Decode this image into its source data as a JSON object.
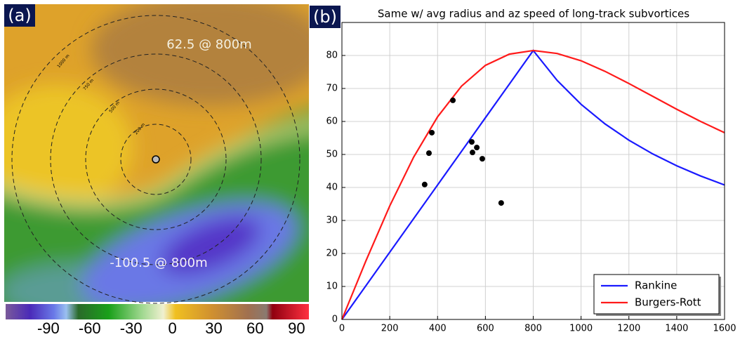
{
  "panel_a": {
    "label": "(a)",
    "annotation_max": "62.5 @ 800m",
    "annotation_min": "-100.5 @ 800m",
    "ring_labels": [
      "200 m",
      "500 m",
      "750 m",
      "1000 m"
    ],
    "colorbar": {
      "clim": [
        -121,
        99
      ],
      "ticks": [
        -90,
        -60,
        -30,
        0,
        30,
        60,
        90
      ]
    }
  },
  "chart_data": {
    "type": "line",
    "label": "(b)",
    "title": "Same w/ avg radius and az speed of long-track subvortices",
    "x": [
      0,
      100,
      200,
      300,
      400,
      500,
      600,
      700,
      800,
      900,
      1000,
      1100,
      1200,
      1300,
      1400,
      1500,
      1600
    ],
    "series": [
      {
        "name": "Rankine",
        "color": "#1a1aff",
        "values": [
          0,
          10.19,
          20.38,
          30.56,
          40.75,
          50.94,
          61.13,
          71.31,
          81.5,
          72.44,
          65.2,
          59.27,
          54.33,
          50.15,
          46.57,
          43.47,
          40.75
        ]
      },
      {
        "name": "Burgers-Rott",
        "color": "#ff1a1a",
        "values": [
          0,
          17.7,
          34.4,
          49.2,
          61.4,
          70.7,
          77.0,
          80.4,
          81.5,
          80.6,
          78.4,
          75.2,
          71.5,
          67.6,
          63.7,
          60.0,
          56.6
        ]
      }
    ],
    "points": {
      "color": "#000000",
      "x": [
        346,
        364,
        376,
        464,
        543,
        546,
        564,
        587,
        666
      ],
      "y": [
        40.9,
        50.4,
        56.6,
        66.4,
        53.8,
        50.6,
        52.1,
        48.7,
        35.3
      ]
    },
    "xlim": [
      0,
      1600
    ],
    "ylim": [
      0,
      90
    ],
    "xticks": [
      0,
      200,
      400,
      600,
      800,
      1000,
      1200,
      1400,
      1600
    ],
    "yticks": [
      0,
      10,
      20,
      30,
      40,
      50,
      60,
      70,
      80
    ],
    "grid": true,
    "legend": "lower right"
  }
}
